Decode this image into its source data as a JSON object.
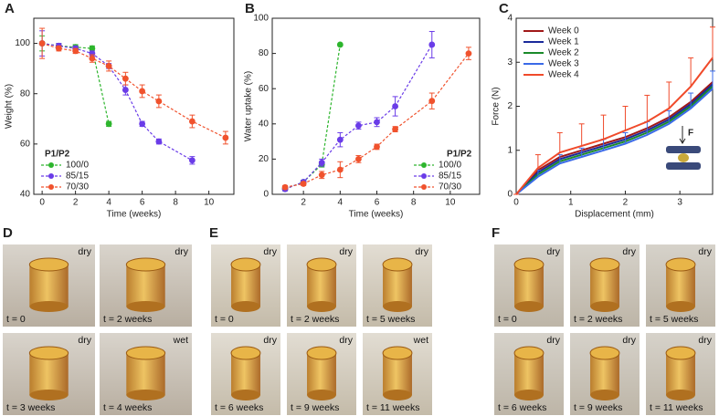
{
  "chart_data": [
    {
      "type": "scatter-line",
      "panel": "A",
      "x_label": "Time (weeks)",
      "y_label": "Weight (%)",
      "xlim": [
        -0.5,
        11.5
      ],
      "xticks": [
        0,
        2,
        4,
        6,
        8,
        10
      ],
      "ylim": [
        40,
        110
      ],
      "yticks": [
        40,
        60,
        80,
        100
      ],
      "line_style": "dashed",
      "markers": true,
      "legend_title": "P1/P2",
      "legend": "lower left",
      "series": [
        {
          "name": "100/0",
          "color": "#2db52d",
          "x": [
            0,
            1,
            2,
            3,
            4
          ],
          "values": [
            100,
            99,
            98.5,
            98,
            68
          ],
          "errors": [
            3,
            1,
            1,
            1,
            1
          ]
        },
        {
          "name": "85/15",
          "color": "#6a3ce8",
          "x": [
            0,
            1,
            2,
            3,
            4,
            5,
            6,
            7,
            9
          ],
          "values": [
            100,
            99,
            98,
            96,
            91,
            81.5,
            68,
            61,
            53.5
          ],
          "errors": [
            5,
            1,
            1,
            1,
            1,
            2,
            1,
            1,
            1.5
          ]
        },
        {
          "name": "70/30",
          "color": "#f0522d",
          "x": [
            0,
            1,
            2,
            3,
            4,
            5,
            6,
            7,
            9,
            11
          ],
          "values": [
            100,
            98,
            97,
            94,
            91,
            86,
            81,
            77,
            69,
            62.5
          ],
          "errors": [
            6,
            1,
            1,
            1.5,
            2,
            2.5,
            2.5,
            2.5,
            2.5,
            2.5
          ]
        }
      ]
    },
    {
      "type": "scatter-line",
      "panel": "B",
      "x_label": "Time (weeks)",
      "y_label": "Water uptake (%)",
      "xlim": [
        0.3,
        11.6
      ],
      "xticks": [
        2,
        4,
        6,
        8,
        10
      ],
      "ylim": [
        0,
        100
      ],
      "yticks": [
        0,
        20,
        40,
        60,
        80,
        100
      ],
      "line_style": "dashed",
      "markers": true,
      "legend_title": "P1/P2",
      "legend": "lower right",
      "series": [
        {
          "name": "100/0",
          "color": "#2db52d",
          "x": [
            1,
            2,
            3,
            4
          ],
          "values": [
            3,
            7,
            17,
            85
          ],
          "errors": [
            1,
            1,
            1.5,
            0
          ]
        },
        {
          "name": "85/15",
          "color": "#6a3ce8",
          "x": [
            1,
            2,
            3,
            4,
            5,
            6,
            7,
            9
          ],
          "values": [
            3,
            7,
            18,
            31,
            39,
            41,
            50,
            85
          ],
          "errors": [
            1,
            1,
            2,
            4,
            2,
            2.5,
            5.5,
            7.5
          ]
        },
        {
          "name": "70/30",
          "color": "#f0522d",
          "x": [
            1,
            2,
            3,
            4,
            5,
            6,
            7,
            9,
            11
          ],
          "values": [
            4,
            6,
            11,
            14,
            20,
            27,
            37,
            53,
            80
          ],
          "errors": [
            1,
            1,
            2,
            4.5,
            2,
            1.5,
            1.5,
            4.5,
            3.5
          ]
        }
      ]
    },
    {
      "type": "line",
      "panel": "C",
      "x_label": "Displacement (mm)",
      "y_label": "Force (N)",
      "xlim": [
        0,
        3.6
      ],
      "xticks": [
        0,
        1,
        2,
        3
      ],
      "ylim": [
        0,
        4
      ],
      "yticks": [
        0,
        1,
        2,
        3,
        4
      ],
      "line_style": "solid",
      "markers": false,
      "legend": "upper left",
      "annotation": "F",
      "series": [
        {
          "name": "Week 0",
          "color": "#a01818",
          "x": [
            0,
            0.4,
            0.8,
            1.2,
            1.6,
            2.0,
            2.4,
            2.8,
            3.2,
            3.6
          ],
          "values": [
            0,
            0.55,
            0.85,
            1.0,
            1.15,
            1.3,
            1.5,
            1.75,
            2.1,
            2.55
          ]
        },
        {
          "name": "Week 1",
          "color": "#1a2a9a",
          "x": [
            0,
            0.4,
            0.8,
            1.2,
            1.6,
            2.0,
            2.4,
            2.8,
            3.2,
            3.6
          ],
          "values": [
            0,
            0.5,
            0.8,
            0.95,
            1.1,
            1.25,
            1.45,
            1.7,
            2.05,
            2.5
          ]
        },
        {
          "name": "Week 2",
          "color": "#1a8a2a",
          "x": [
            0,
            0.4,
            0.8,
            1.2,
            1.6,
            2.0,
            2.4,
            2.8,
            3.2,
            3.6
          ],
          "values": [
            0,
            0.45,
            0.75,
            0.9,
            1.05,
            1.2,
            1.4,
            1.65,
            2.0,
            2.45
          ]
        },
        {
          "name": "Week 3",
          "color": "#3a6ae8",
          "x": [
            0,
            0.4,
            0.8,
            1.2,
            1.6,
            2.0,
            2.4,
            2.8,
            3.2,
            3.6
          ],
          "values": [
            0,
            0.4,
            0.7,
            0.85,
            1.0,
            1.15,
            1.35,
            1.6,
            1.95,
            2.4
          ],
          "errors": [
            0,
            0.15,
            0.2,
            0.2,
            0.25,
            0.25,
            0.3,
            0.3,
            0.35,
            0.4
          ]
        },
        {
          "name": "Week 4",
          "color": "#f04a2a",
          "x": [
            0,
            0.4,
            0.8,
            1.2,
            1.6,
            2.0,
            2.4,
            2.8,
            3.2,
            3.6
          ],
          "values": [
            0,
            0.6,
            0.95,
            1.1,
            1.25,
            1.45,
            1.65,
            1.95,
            2.45,
            3.1
          ],
          "errors": [
            0,
            0.3,
            0.45,
            0.5,
            0.55,
            0.55,
            0.6,
            0.6,
            0.65,
            0.7
          ]
        }
      ]
    }
  ],
  "photo_panels": [
    {
      "label": "D",
      "photos": [
        {
          "condition": "dry",
          "time": "t = 0"
        },
        {
          "condition": "dry",
          "time": "t = 2 weeks"
        },
        {
          "condition": "dry",
          "time": "t = 3 weeks"
        },
        {
          "condition": "wet",
          "time": "t = 4 weeks"
        }
      ]
    },
    {
      "label": "E",
      "photos": [
        {
          "condition": "dry",
          "time": "t = 0"
        },
        {
          "condition": "dry",
          "time": "t = 2 weeks"
        },
        {
          "condition": "dry",
          "time": "t = 5 weeks"
        },
        {
          "condition": "dry",
          "time": "t = 6 weeks"
        },
        {
          "condition": "dry",
          "time": "t = 9 weeks"
        },
        {
          "condition": "wet",
          "time": "t = 11 weeks"
        }
      ]
    },
    {
      "label": "F",
      "photos": [
        {
          "condition": "dry",
          "time": "t = 0"
        },
        {
          "condition": "dry",
          "time": "t = 2 weeks"
        },
        {
          "condition": "dry",
          "time": "t = 5 weeks"
        },
        {
          "condition": "dry",
          "time": "t = 6 weeks"
        },
        {
          "condition": "dry",
          "time": "t = 9 weeks"
        },
        {
          "condition": "dry",
          "time": "t = 11 weeks"
        }
      ]
    }
  ]
}
